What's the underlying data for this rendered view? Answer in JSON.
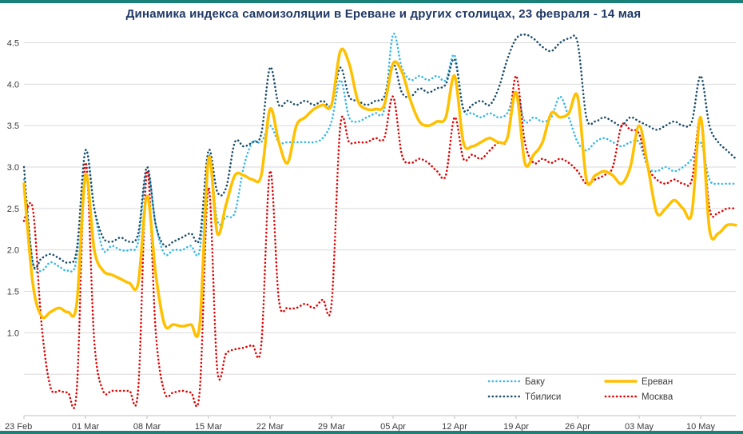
{
  "chart_data": {
    "type": "line",
    "title": "Динамика индекса самоизоляции в Ереване и других столицах, 23 февраля - 14 мая",
    "x_range": [
      0,
      81
    ],
    "x_tick_positions": [
      0,
      7,
      14,
      21,
      28,
      35,
      42,
      49,
      56,
      63,
      70,
      77
    ],
    "x_tick_labels": [
      "23 Feb",
      "01 Mar",
      "08 Mar",
      "15 Mar",
      "22 Mar",
      "29 Mar",
      "05 Apr",
      "12 Apr",
      "19 Apr",
      "26 Apr",
      "03 May",
      "10 May"
    ],
    "ylim": [
      0,
      4.65
    ],
    "ygrid": [
      0.5,
      1.0,
      1.5,
      2.0,
      2.5,
      3.0,
      3.5,
      4.0,
      4.5
    ],
    "yticks": [
      1.0,
      1.5,
      2.0,
      2.5,
      3.0,
      3.5,
      4.0,
      4.5
    ],
    "grid": "horizontal",
    "legend_position": "bottom-right",
    "colors": {
      "background": "#ffffff",
      "frame": "#1a8078",
      "grid": "#d9d9d9",
      "axis": "#bfbfbf",
      "tick_text": "#3b3b3b",
      "title_text": "#1f3864"
    },
    "series": [
      {
        "name": "Баку",
        "color": "#38b8e8",
        "style": "dotted",
        "width": 2.6,
        "values": [
          2.85,
          1.85,
          1.75,
          1.85,
          1.8,
          1.75,
          1.9,
          3.2,
          2.5,
          2.0,
          2.05,
          2.0,
          2.0,
          2.1,
          2.95,
          2.3,
          1.95,
          2.0,
          2.0,
          2.05,
          2.0,
          3.15,
          2.35,
          2.4,
          2.45,
          3.0,
          3.3,
          3.3,
          3.5,
          3.3,
          3.3,
          3.3,
          3.3,
          3.3,
          3.35,
          3.55,
          4.05,
          3.6,
          3.55,
          3.6,
          3.65,
          3.7,
          4.6,
          4.2,
          4.05,
          4.1,
          4.05,
          4.1,
          4.05,
          4.35,
          3.7,
          3.65,
          3.6,
          3.65,
          3.6,
          3.65,
          3.9,
          3.55,
          3.6,
          3.55,
          3.6,
          3.85,
          3.6,
          3.3,
          3.2,
          3.3,
          3.35,
          3.3,
          3.25,
          3.3,
          3.3,
          3.0,
          2.95,
          3.0,
          2.95,
          3.0,
          3.1,
          3.3,
          2.85,
          2.8,
          2.8,
          2.8
        ]
      },
      {
        "name": "Тбилиси",
        "color": "#1f4e6a",
        "style": "dotted",
        "width": 2.6,
        "values": [
          3.0,
          1.85,
          1.9,
          1.95,
          1.9,
          1.85,
          2.0,
          3.2,
          2.5,
          2.15,
          2.1,
          2.15,
          2.1,
          2.2,
          3.0,
          2.3,
          2.05,
          2.1,
          2.15,
          2.2,
          2.15,
          3.2,
          2.7,
          2.75,
          3.3,
          3.25,
          3.3,
          3.4,
          4.2,
          3.75,
          3.8,
          3.75,
          3.8,
          3.75,
          3.8,
          3.75,
          4.2,
          3.85,
          3.8,
          3.75,
          3.8,
          3.85,
          4.25,
          3.9,
          3.85,
          3.95,
          3.9,
          3.95,
          4.0,
          4.3,
          3.7,
          3.75,
          3.8,
          3.75,
          3.95,
          4.3,
          4.55,
          4.6,
          4.55,
          4.45,
          4.4,
          4.5,
          4.55,
          4.5,
          3.6,
          3.55,
          3.6,
          3.55,
          3.5,
          3.6,
          3.55,
          3.5,
          3.45,
          3.5,
          3.55,
          3.5,
          3.55,
          4.1,
          3.5,
          3.3,
          3.2,
          3.1
        ]
      },
      {
        "name": "Москва",
        "color": "#e00000",
        "style": "dotted",
        "width": 2.6,
        "values": [
          2.35,
          2.5,
          1.1,
          0.35,
          0.3,
          0.28,
          0.3,
          3.05,
          0.9,
          0.3,
          0.3,
          0.3,
          0.3,
          0.32,
          2.95,
          1.0,
          0.28,
          0.28,
          0.3,
          0.28,
          0.3,
          2.75,
          0.55,
          0.75,
          0.8,
          0.82,
          0.85,
          0.85,
          2.95,
          1.4,
          1.3,
          1.3,
          1.35,
          1.3,
          1.4,
          1.35,
          3.5,
          3.3,
          3.3,
          3.3,
          3.35,
          3.35,
          3.85,
          3.15,
          3.05,
          3.1,
          3.05,
          2.95,
          2.9,
          3.6,
          3.1,
          3.15,
          3.1,
          3.2,
          3.3,
          3.35,
          4.1,
          3.3,
          3.05,
          3.1,
          3.05,
          3.1,
          3.05,
          2.95,
          2.8,
          2.85,
          2.9,
          3.0,
          3.5,
          3.45,
          3.4,
          3.0,
          2.85,
          2.8,
          2.85,
          2.8,
          2.85,
          3.6,
          2.5,
          2.45,
          2.5,
          2.5
        ]
      },
      {
        "name": "Ереван",
        "color": "#ffc000",
        "style": "solid",
        "width": 3.5,
        "values": [
          2.8,
          1.6,
          1.2,
          1.25,
          1.3,
          1.25,
          1.35,
          2.9,
          2.0,
          1.75,
          1.7,
          1.65,
          1.6,
          1.6,
          2.65,
          1.7,
          1.1,
          1.1,
          1.08,
          1.1,
          1.1,
          3.1,
          2.2,
          2.55,
          2.9,
          2.9,
          2.85,
          2.9,
          3.7,
          3.3,
          3.05,
          3.5,
          3.6,
          3.7,
          3.75,
          3.75,
          4.4,
          4.25,
          3.8,
          3.7,
          3.7,
          3.75,
          4.25,
          4.15,
          3.8,
          3.55,
          3.5,
          3.55,
          3.6,
          4.1,
          3.3,
          3.25,
          3.3,
          3.35,
          3.3,
          3.35,
          3.9,
          3.05,
          3.15,
          3.3,
          3.65,
          3.6,
          3.65,
          3.85,
          2.85,
          2.9,
          2.95,
          2.9,
          2.8,
          3.0,
          3.5,
          3.0,
          2.45,
          2.5,
          2.6,
          2.5,
          2.45,
          3.6,
          2.25,
          2.2,
          2.3,
          2.3
        ]
      }
    ],
    "legend_rows": [
      [
        "Баку",
        "Ереван"
      ],
      [
        "Тбилиси",
        "Москва"
      ]
    ]
  }
}
